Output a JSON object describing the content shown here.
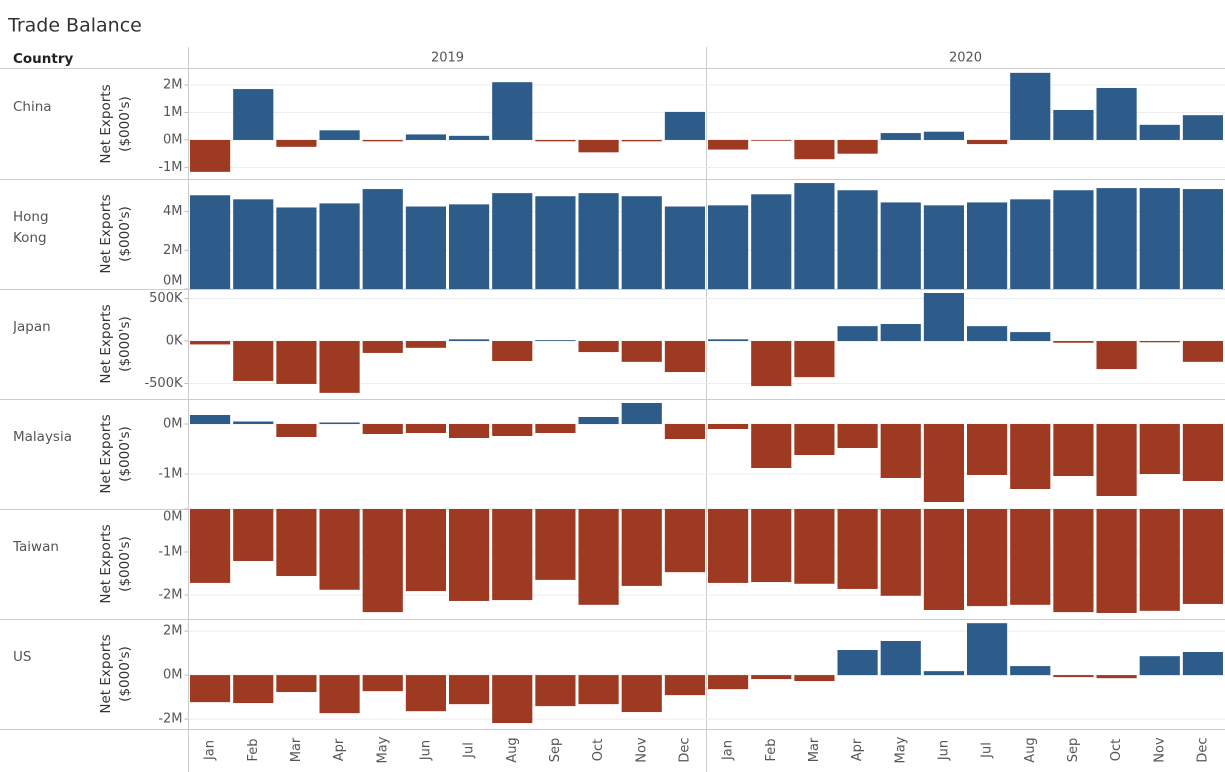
{
  "chart_data": {
    "type": "bar",
    "title": "Trade Balance",
    "row_header": "Country",
    "columns": [
      "2019",
      "2020"
    ],
    "months": [
      "Jan",
      "Feb",
      "Mar",
      "Apr",
      "May",
      "Jun",
      "Jul",
      "Aug",
      "Sep",
      "Oct",
      "Nov",
      "Dec"
    ],
    "y_axis_label": [
      "Net Exports",
      "($000's)"
    ],
    "colors": {
      "positive": "#2d5b8a",
      "negative": "#9e3a22"
    },
    "grid": true,
    "panels": [
      {
        "name": "China",
        "ylim": [
          -1420000,
          2580000
        ],
        "yticks": [
          {
            "value": -1000000,
            "label": "-1M"
          },
          {
            "value": 0,
            "label": "0M"
          },
          {
            "value": 1000000,
            "label": "1M"
          },
          {
            "value": 2000000,
            "label": "2M"
          }
        ],
        "values": [
          [
            -1160000,
            1850000,
            -250000,
            350000,
            -50000,
            200000,
            150000,
            2100000,
            -50000,
            -450000,
            -50000,
            1020000
          ],
          [
            -350000,
            -30000,
            -700000,
            -500000,
            250000,
            300000,
            -150000,
            2440000,
            1090000,
            1890000,
            550000,
            900000
          ]
        ]
      },
      {
        "name": "Hong Kong",
        "ylim": [
          0,
          5680000
        ],
        "yticks": [
          {
            "value": 0,
            "label": "0M"
          },
          {
            "value": 2000000,
            "label": "2M"
          },
          {
            "value": 4000000,
            "label": "4M"
          }
        ],
        "values": [
          [
            4840000,
            4630000,
            4210000,
            4420000,
            5160000,
            4260000,
            4370000,
            4950000,
            4790000,
            4950000,
            4790000,
            4260000
          ],
          [
            4320000,
            4890000,
            5470000,
            5100000,
            4470000,
            4320000,
            4470000,
            4630000,
            5100000,
            5210000,
            5210000,
            5160000
          ]
        ]
      },
      {
        "name": "Japan",
        "ylim": [
          -682000,
          612000
        ],
        "yticks": [
          {
            "value": -500000,
            "label": "-500K"
          },
          {
            "value": 0,
            "label": "0K"
          },
          {
            "value": 500000,
            "label": "500K"
          }
        ],
        "values": [
          [
            -40000,
            -470000,
            -505000,
            -610000,
            -140000,
            -80000,
            20000,
            -235000,
            10000,
            -130000,
            -245000,
            -365000
          ],
          [
            20000,
            -530000,
            -425000,
            175000,
            200000,
            565000,
            175000,
            105000,
            -20000,
            -330000,
            -15000,
            -245000
          ]
        ]
      },
      {
        "name": "Malaysia",
        "ylim": [
          -1700000,
          500000
        ],
        "yticks": [
          {
            "value": -1000000,
            "label": "-1M"
          },
          {
            "value": 0,
            "label": "0M"
          }
        ],
        "values": [
          [
            180000,
            50000,
            -260000,
            30000,
            -200000,
            -180000,
            -280000,
            -240000,
            -180000,
            140000,
            420000,
            -300000
          ],
          [
            -100000,
            -880000,
            -620000,
            -480000,
            -1080000,
            -1560000,
            -1020000,
            -1300000,
            -1040000,
            -1440000,
            -1000000,
            -1140000
          ]
        ]
      },
      {
        "name": "Taiwan",
        "ylim": [
          -2560000,
          0
        ],
        "yticks": [
          {
            "value": -2000000,
            "label": "-2M"
          },
          {
            "value": -1000000,
            "label": "-1M"
          },
          {
            "value": 0,
            "label": "0M"
          }
        ],
        "values": [
          [
            -1720000,
            -1210000,
            -1560000,
            -1880000,
            -2400000,
            -1910000,
            -2140000,
            -2120000,
            -1650000,
            -2230000,
            -1790000,
            -1470000
          ],
          [
            -1720000,
            -1700000,
            -1740000,
            -1860000,
            -2020000,
            -2350000,
            -2260000,
            -2230000,
            -2400000,
            -2420000,
            -2370000,
            -2210000
          ]
        ]
      },
      {
        "name": "US",
        "ylim": [
          -2450000,
          2550000
        ],
        "yticks": [
          {
            "value": -2000000,
            "label": "-2M"
          },
          {
            "value": 0,
            "label": "0M"
          },
          {
            "value": 2000000,
            "label": "2M"
          }
        ],
        "values": [
          [
            -1230000,
            -1270000,
            -770000,
            -1730000,
            -730000,
            -1640000,
            -1320000,
            -2180000,
            -1410000,
            -1320000,
            -1680000,
            -910000
          ],
          [
            -640000,
            -180000,
            -270000,
            1140000,
            1550000,
            180000,
            2360000,
            410000,
            -90000,
            -140000,
            860000,
            1050000
          ]
        ]
      }
    ]
  }
}
